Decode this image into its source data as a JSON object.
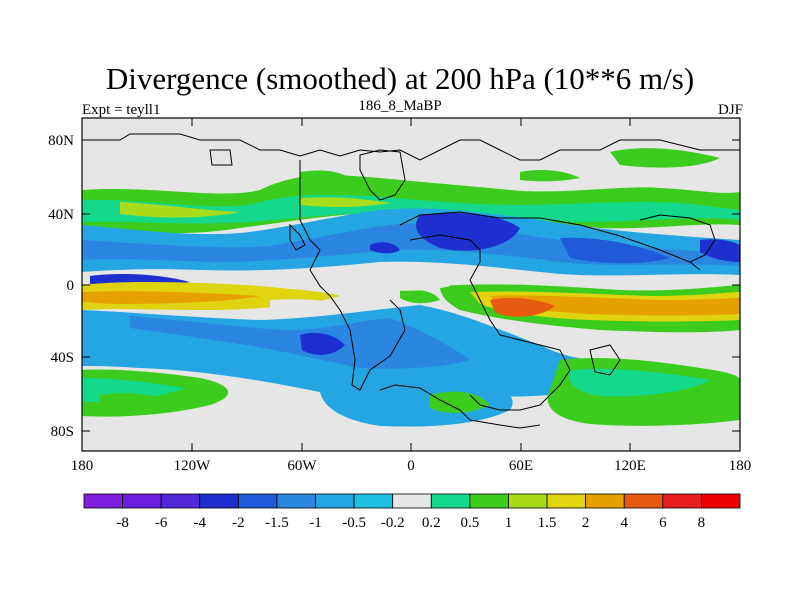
{
  "title": "Divergence (smoothed) at 200 hPa (10**6 m/s)",
  "experiment": "Expt = teyll1",
  "case_id": "186_8_MaBP",
  "season": "DJF",
  "lat_ticks": [
    "80N",
    "40N",
    "0",
    "40S",
    "80S"
  ],
  "lon_ticks": [
    "180",
    "120W",
    "60W",
    "0",
    "60E",
    "120E",
    "180"
  ],
  "colorbar": {
    "labels": [
      "-8",
      "-6",
      "-4",
      "-2",
      "-1.5",
      "-1",
      "-0.5",
      "-0.2",
      "0.2",
      "0.5",
      "1",
      "1.5",
      "2",
      "4",
      "6",
      "8"
    ],
    "colors": [
      "#7f1fe0",
      "#6b1ee0",
      "#5028d8",
      "#1e2fd0",
      "#1f5ad8",
      "#2a86e0",
      "#25a6e2",
      "#20c0e2",
      "#e6e6e6",
      "#14d98c",
      "#3ccc1e",
      "#a8dc1a",
      "#e0d410",
      "#e6a000",
      "#e85a10",
      "#e81e1e",
      "#ee0000"
    ]
  },
  "chart_data": {
    "type": "heatmap",
    "title": "Divergence (smoothed) at 200 hPa (10**6 m/s)",
    "subtitle_left": "Expt = teyll1",
    "subtitle_center": "186_8_MaBP",
    "subtitle_right": "DJF",
    "xlim": [
      -180,
      180
    ],
    "ylim": [
      -90,
      90
    ],
    "xticks": [
      "180",
      "120W",
      "60W",
      "0",
      "60E",
      "120E",
      "180"
    ],
    "yticks": [
      "80N",
      "40N",
      "0",
      "40S",
      "80S"
    ],
    "levels": [
      -8,
      -6,
      -4,
      -2,
      -1.5,
      -1,
      -0.5,
      -0.2,
      0.2,
      0.5,
      1,
      1.5,
      2,
      4,
      6,
      8
    ]
  }
}
